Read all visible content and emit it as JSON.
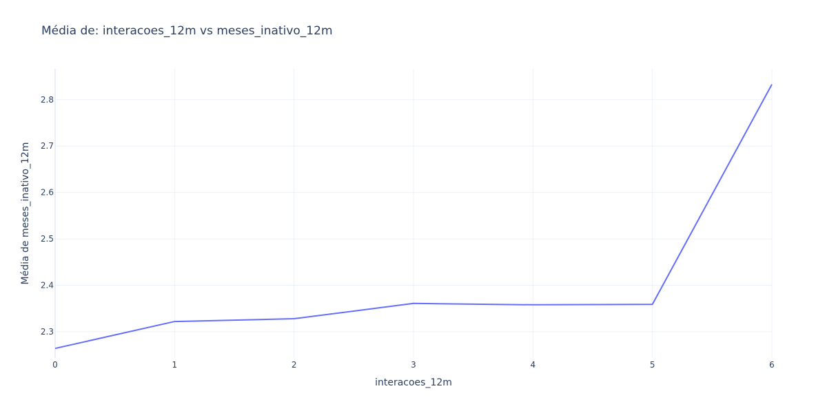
{
  "chart_data": {
    "type": "line",
    "title": "Média de: interacoes_12m vs meses_inativo_12m",
    "xlabel": "interacoes_12m",
    "ylabel": "Média de meses_inativo_12m",
    "x": [
      0,
      1,
      2,
      3,
      4,
      5,
      6
    ],
    "series": [
      {
        "values": [
          2.264,
          2.322,
          2.328,
          2.361,
          2.358,
          2.359,
          2.833
        ]
      }
    ],
    "xlim": [
      0,
      6
    ],
    "ylim": [
      2.2435,
      2.8665
    ],
    "x_ticks": [
      "0",
      "1",
      "2",
      "3",
      "4",
      "5",
      "6"
    ],
    "y_ticks": [
      "2.3",
      "2.4",
      "2.5",
      "2.6",
      "2.7",
      "2.8"
    ],
    "y_tick_values": [
      2.3,
      2.4,
      2.5,
      2.6,
      2.7,
      2.8
    ],
    "grid": true,
    "line_color": "#636efa"
  }
}
